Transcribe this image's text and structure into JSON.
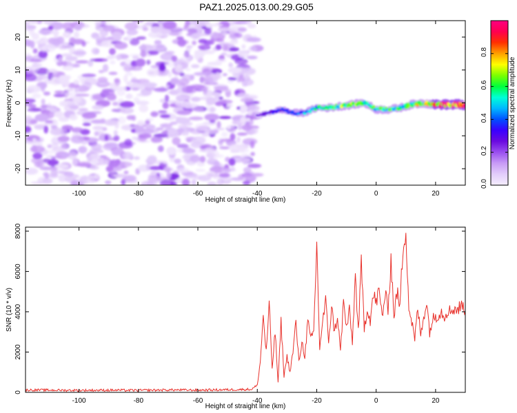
{
  "title": "PAZ1.2025.013.00.29.G05",
  "chart_data": [
    {
      "type": "heatmap",
      "xlabel": "Height of straight line (km)",
      "ylabel": "Frequency (Hz)",
      "xlim": [
        -118,
        30
      ],
      "ylim": [
        -25,
        25
      ],
      "xticks": [
        -100,
        -80,
        -60,
        -40,
        -20,
        0,
        20
      ],
      "yticks": [
        -20,
        -10,
        0,
        10,
        20
      ],
      "colorbar": {
        "label": "Normalized spectral amplitude",
        "range": [
          0,
          1
        ],
        "ticks": [
          0.0,
          0.2,
          0.4,
          0.6,
          0.8
        ],
        "colors": [
          "#f5eefe",
          "#e2cdfb",
          "#c89bf6",
          "#9a4ff0",
          "#6a0ae0",
          "#3a00ff",
          "#0050ff",
          "#00b8ff",
          "#00ffd8",
          "#00ff3c",
          "#7cff00",
          "#ffff00",
          "#ffa000",
          "#ff3000",
          "#ff0050",
          "#ff0080"
        ]
      },
      "noise_region": {
        "x_range": [
          -118,
          -40
        ],
        "y_range": [
          -25,
          25
        ],
        "amplitude": "0.0-0.15"
      },
      "signal_track": [
        {
          "x": -40,
          "y": -4.0,
          "amp": 0.25
        },
        {
          "x": -36,
          "y": -3.0,
          "amp": 0.3
        },
        {
          "x": -32,
          "y": -2.0,
          "amp": 0.35
        },
        {
          "x": -28,
          "y": -3.0,
          "amp": 0.4
        },
        {
          "x": -24,
          "y": -3.0,
          "amp": 0.45
        },
        {
          "x": -20,
          "y": -1.5,
          "amp": 0.5
        },
        {
          "x": -16,
          "y": -1.5,
          "amp": 0.55
        },
        {
          "x": -12,
          "y": -1.0,
          "amp": 0.6
        },
        {
          "x": -8,
          "y": -0.5,
          "amp": 0.65
        },
        {
          "x": -4,
          "y": 0.0,
          "amp": 0.6
        },
        {
          "x": 0,
          "y": -2.0,
          "amp": 0.55
        },
        {
          "x": 4,
          "y": -2.0,
          "amp": 0.6
        },
        {
          "x": 8,
          "y": -1.5,
          "amp": 0.55
        },
        {
          "x": 12,
          "y": -0.5,
          "amp": 0.65
        },
        {
          "x": 16,
          "y": 0.0,
          "amp": 0.7
        },
        {
          "x": 20,
          "y": -0.5,
          "amp": 0.8
        },
        {
          "x": 24,
          "y": -0.5,
          "amp": 0.9
        },
        {
          "x": 28,
          "y": -0.5,
          "amp": 0.95
        },
        {
          "x": 30,
          "y": -0.5,
          "amp": 1.0
        }
      ]
    },
    {
      "type": "line",
      "xlabel": "Height of straight line (km)",
      "ylabel": "SNR (10 * v/v)",
      "xlim": [
        -118,
        30
      ],
      "ylim": [
        0,
        8200
      ],
      "xticks": [
        -100,
        -80,
        -60,
        -40,
        -20,
        0,
        20
      ],
      "yticks": [
        0,
        2000,
        4000,
        6000,
        8000
      ],
      "series": [
        {
          "color": "#e8302a",
          "x": [
            -118,
            -110,
            -100,
            -90,
            -80,
            -70,
            -60,
            -50,
            -42,
            -40,
            -39,
            -38,
            -37,
            -36,
            -35,
            -34,
            -33,
            -32,
            -31,
            -30,
            -29,
            -28,
            -27,
            -26,
            -25,
            -24,
            -23,
            -22,
            -21,
            -20,
            -19,
            -18,
            -17,
            -16,
            -15,
            -14,
            -13,
            -12,
            -11,
            -10,
            -9,
            -8,
            -7,
            -6,
            -5,
            -4,
            -3,
            -2,
            -1,
            0,
            1,
            2,
            3,
            4,
            5,
            6,
            7,
            8,
            9,
            10,
            11,
            12,
            13,
            14,
            15,
            16,
            17,
            18,
            19,
            20,
            21,
            22,
            23,
            24,
            25,
            26,
            27,
            28,
            29,
            30
          ],
          "values": [
            120,
            110,
            100,
            110,
            100,
            120,
            110,
            130,
            150,
            350,
            1500,
            3800,
            2000,
            4300,
            1200,
            3000,
            500,
            3500,
            800,
            1800,
            1000,
            2000,
            3500,
            1500,
            2500,
            1800,
            3500,
            2600,
            3000,
            7400,
            2200,
            3500,
            4500,
            2600,
            4200,
            3000,
            3800,
            2000,
            4500,
            3200,
            4000,
            2500,
            5800,
            3000,
            6300,
            3200,
            4200,
            3600,
            4800,
            4500,
            5000,
            3800,
            4800,
            4200,
            6600,
            3800,
            5000,
            4200,
            7200,
            8200,
            4200,
            3500,
            2600,
            4200,
            2800,
            3800,
            4500,
            3000,
            3600,
            3800,
            3900,
            4000,
            3800,
            4100,
            4000,
            4200,
            4100,
            4200,
            4300,
            4200
          ]
        }
      ]
    }
  ]
}
